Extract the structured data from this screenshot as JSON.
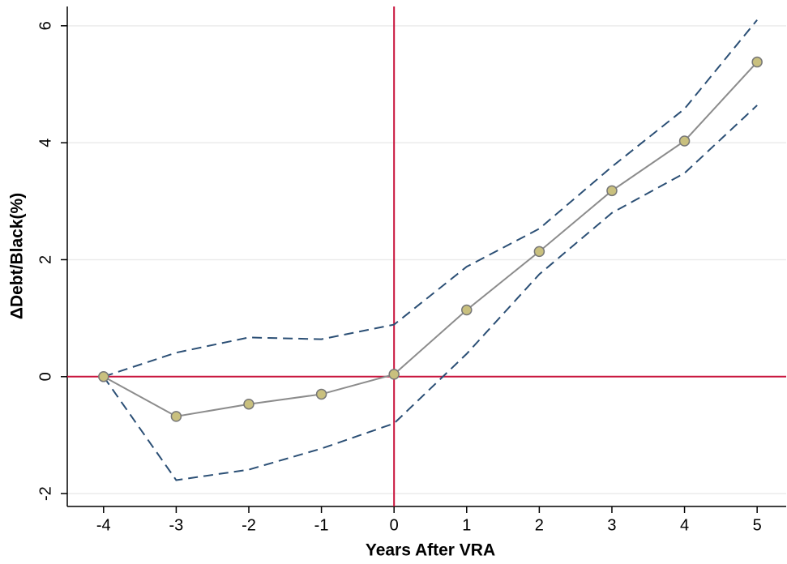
{
  "chart_data": {
    "type": "line",
    "x_label": "Years After VRA",
    "y_label": "ΔDebt/Black(%)",
    "x": [
      -4,
      -3,
      -2,
      -1,
      0,
      1,
      2,
      3,
      4,
      5
    ],
    "series": [
      {
        "color": "#8c8c8c",
        "marker": true,
        "dashed": false,
        "values": [
          0,
          -0.68,
          -0.47,
          -0.3,
          0.04,
          1.14,
          2.14,
          3.18,
          4.03,
          5.38
        ]
      },
      {
        "color": "#2b4f75",
        "marker": false,
        "dashed": true,
        "values": [
          0,
          0.41,
          0.67,
          0.64,
          0.89,
          1.88,
          2.53,
          3.59,
          4.58,
          6.1
        ]
      },
      {
        "color": "#2b4f75",
        "marker": false,
        "dashed": true,
        "values": [
          0,
          -1.77,
          -1.59,
          -1.23,
          -0.8,
          0.39,
          1.75,
          2.8,
          3.48,
          4.64
        ]
      }
    ],
    "xlim": [
      -4.5,
      5.4
    ],
    "ylim": [
      -2.22,
      6.33
    ],
    "xticks": [
      -4,
      -3,
      -2,
      -1,
      0,
      1,
      2,
      3,
      4,
      5
    ],
    "yticks": [
      -2,
      0,
      2,
      4,
      6
    ],
    "grid": true,
    "hlines": [
      0
    ],
    "vlines": [
      0
    ],
    "ref_color": "#c8143c"
  }
}
